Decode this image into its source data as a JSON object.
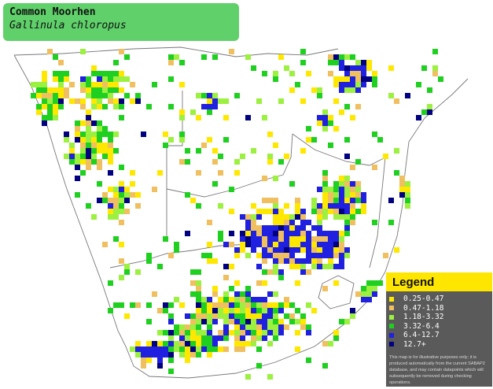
{
  "title": {
    "common_name": "Common Moorhen",
    "scientific_name": "Gallinula chloropus"
  },
  "legend": {
    "heading": "Legend",
    "items": [
      {
        "label": "0.25-0.47",
        "color": "#ffe800"
      },
      {
        "label": "0.47-1.18",
        "color": "#f0c060"
      },
      {
        "label": "1.18-3.32",
        "color": "#9cf040"
      },
      {
        "label": "3.32-6.4",
        "color": "#20d020"
      },
      {
        "label": "6.4-12.7",
        "color": "#2020e0"
      },
      {
        "label": "12.7+",
        "color": "#000080"
      }
    ],
    "note": "This map is for illustrative purposes only; it is produced automatically from the current SABAP2 database, and may contain datapoints which will subsequently be removed during checking operations."
  }
}
